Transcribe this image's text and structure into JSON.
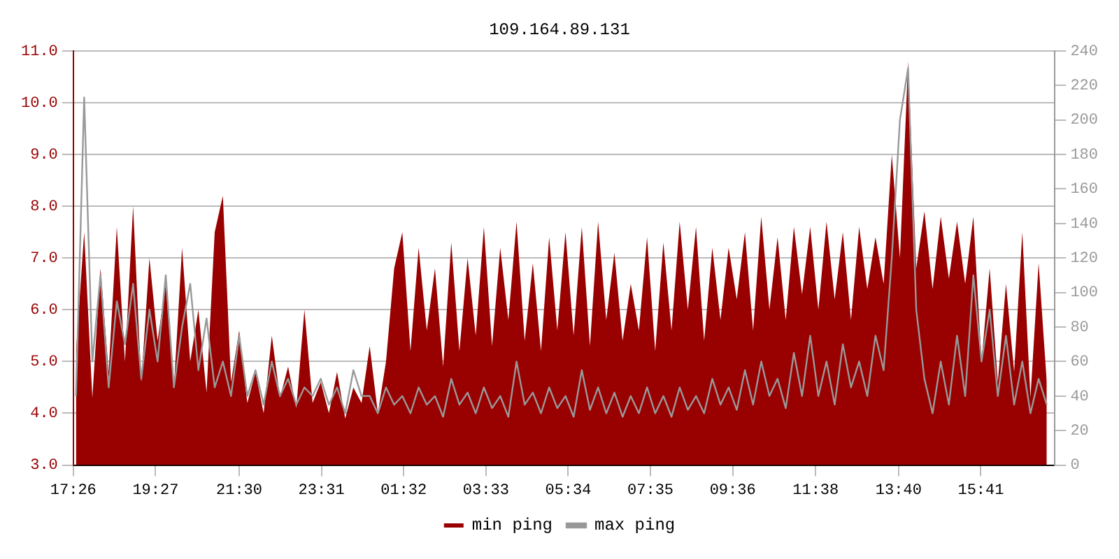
{
  "chart_data": {
    "type": "line",
    "title": "109.164.89.131",
    "x": [
      "--01-01T17:30",
      "--01-01T17:42",
      "--01-01T17:54",
      "--01-01T18:06",
      "--01-01T18:18",
      "--01-01T18:30",
      "--01-01T18:42",
      "--01-01T18:54",
      "--01-01T19:06",
      "--01-01T19:18",
      "--01-01T19:30",
      "--01-01T19:42",
      "--01-01T19:54",
      "--01-01T20:06",
      "--01-01T20:18",
      "--01-01T20:30",
      "--01-01T20:42",
      "--01-01T20:54",
      "--01-01T21:06",
      "--01-01T21:18",
      "--01-01T21:30",
      "--01-01T21:42",
      "--01-01T21:54",
      "--01-01T22:06",
      "--01-01T22:18",
      "--01-01T22:30",
      "--01-01T22:42",
      "--01-01T22:54",
      "--01-01T23:06",
      "--01-01T23:18",
      "--01-01T23:30",
      "--01-01T23:42",
      "--01-01T23:54",
      "--01-02T00:06",
      "--01-02T00:18",
      "--01-02T00:30",
      "--01-02T00:42",
      "--01-02T00:54",
      "--01-02T01:06",
      "--01-02T01:18",
      "--01-02T01:30",
      "--01-02T01:42",
      "--01-02T01:54",
      "--01-02T02:06",
      "--01-02T02:18",
      "--01-02T02:30",
      "--01-02T02:42",
      "--01-02T02:54",
      "--01-02T03:06",
      "--01-02T03:18",
      "--01-02T03:30",
      "--01-02T03:42",
      "--01-02T03:54",
      "--01-02T04:06",
      "--01-02T04:18",
      "--01-02T04:30",
      "--01-02T04:42",
      "--01-02T04:54",
      "--01-02T05:06",
      "--01-02T05:18",
      "--01-02T05:30",
      "--01-02T05:42",
      "--01-02T05:54",
      "--01-02T06:06",
      "--01-02T06:18",
      "--01-02T06:30",
      "--01-02T06:42",
      "--01-02T06:54",
      "--01-02T07:06",
      "--01-02T07:18",
      "--01-02T07:30",
      "--01-02T07:42",
      "--01-02T07:54",
      "--01-02T08:06",
      "--01-02T08:18",
      "--01-02T08:30",
      "--01-02T08:42",
      "--01-02T08:54",
      "--01-02T09:06",
      "--01-02T09:18",
      "--01-02T09:30",
      "--01-02T09:42",
      "--01-02T09:54",
      "--01-02T10:06",
      "--01-02T10:18",
      "--01-02T10:30",
      "--01-02T10:42",
      "--01-02T10:54",
      "--01-02T11:06",
      "--01-02T11:18",
      "--01-02T11:30",
      "--01-02T11:42",
      "--01-02T11:54",
      "--01-02T12:06",
      "--01-02T12:18",
      "--01-02T12:30",
      "--01-02T12:42",
      "--01-02T12:54",
      "--01-02T13:06",
      "--01-02T13:18",
      "--01-02T13:30",
      "--01-02T13:42",
      "--01-02T13:54",
      "--01-02T14:06",
      "--01-02T14:18",
      "--01-02T14:30",
      "--01-02T14:42",
      "--01-02T14:54",
      "--01-02T15:06",
      "--01-02T15:18",
      "--01-02T15:30",
      "--01-02T15:42",
      "--01-02T15:54",
      "--01-02T16:06",
      "--01-02T16:18",
      "--01-02T16:30",
      "--01-02T16:42",
      "--01-02T16:54",
      "--01-02T17:06",
      "--01-02T17:18"
    ],
    "series": [
      {
        "name": "min ping",
        "type": "area",
        "color": "#990000",
        "values": [
          5.2,
          7.5,
          4.3,
          6.8,
          4.8,
          7.6,
          5.0,
          8.0,
          4.6,
          7.0,
          5.4,
          6.5,
          4.5,
          7.2,
          5.0,
          6.0,
          4.4,
          7.5,
          8.2,
          4.6,
          5.6,
          4.2,
          4.8,
          4.0,
          5.5,
          4.3,
          4.9,
          4.1,
          6.0,
          4.2,
          4.6,
          4.0,
          4.8,
          3.9,
          4.5,
          4.2,
          5.3,
          4.0,
          5.0,
          6.8,
          7.5,
          5.2,
          7.2,
          5.6,
          6.8,
          4.9,
          7.3,
          5.2,
          7.0,
          5.5,
          7.6,
          5.3,
          7.2,
          5.8,
          7.7,
          5.4,
          6.9,
          5.2,
          7.4,
          5.6,
          7.5,
          5.5,
          7.6,
          5.3,
          7.7,
          5.8,
          7.1,
          5.4,
          6.5,
          5.6,
          7.4,
          5.2,
          7.3,
          5.6,
          7.7,
          6.0,
          7.6,
          5.4,
          7.2,
          5.8,
          7.2,
          6.2,
          7.5,
          5.6,
          7.8,
          6.0,
          7.4,
          5.8,
          7.6,
          6.3,
          7.6,
          6.0,
          7.7,
          6.2,
          7.5,
          5.8,
          7.6,
          6.4,
          7.4,
          6.5,
          9.0,
          7.0,
          10.8,
          6.8,
          7.9,
          6.4,
          7.8,
          6.6,
          7.7,
          6.5,
          7.8,
          5.0,
          6.8,
          4.6,
          6.5,
          4.8,
          7.5,
          4.3,
          6.9,
          4.6
        ]
      },
      {
        "name": "max ping",
        "type": "line",
        "axis": "y2",
        "color": "#999999",
        "values": [
          40,
          213,
          60,
          110,
          45,
          95,
          70,
          105,
          50,
          90,
          60,
          110,
          45,
          80,
          105,
          55,
          85,
          45,
          60,
          40,
          75,
          40,
          55,
          35,
          60,
          40,
          50,
          35,
          45,
          40,
          50,
          35,
          45,
          30,
          55,
          40,
          40,
          30,
          45,
          35,
          40,
          30,
          45,
          35,
          40,
          28,
          50,
          35,
          42,
          30,
          45,
          33,
          40,
          28,
          60,
          35,
          42,
          30,
          45,
          33,
          40,
          28,
          55,
          32,
          45,
          30,
          42,
          28,
          40,
          30,
          45,
          30,
          40,
          28,
          45,
          32,
          40,
          30,
          50,
          35,
          45,
          32,
          55,
          35,
          60,
          40,
          50,
          33,
          65,
          40,
          75,
          40,
          60,
          35,
          70,
          45,
          60,
          40,
          75,
          55,
          120,
          200,
          230,
          90,
          50,
          30,
          60,
          35,
          75,
          40,
          110,
          60,
          90,
          40,
          75,
          35,
          60,
          30,
          50,
          35
        ]
      }
    ],
    "xlim": [
      "--01-01T17:26",
      "--01-02T17:30"
    ],
    "xticks": [
      {
        "value": "--01-01T17:26",
        "label": "17:26"
      },
      {
        "value": "--01-01T19:27",
        "label": "19:27"
      },
      {
        "value": "--01-01T21:30",
        "label": "21:30"
      },
      {
        "value": "--01-01T23:31",
        "label": "23:31"
      },
      {
        "value": "--01-02T01:32",
        "label": "01:32"
      },
      {
        "value": "--01-02T03:33",
        "label": "03:33"
      },
      {
        "value": "--01-02T05:34",
        "label": "05:34"
      },
      {
        "value": "--01-02T07:35",
        "label": "07:35"
      },
      {
        "value": "--01-02T09:36",
        "label": "09:36"
      },
      {
        "value": "--01-02T11:38",
        "label": "11:38"
      },
      {
        "value": "--01-02T13:40",
        "label": "13:40"
      },
      {
        "value": "--01-02T15:41",
        "label": "15:41"
      }
    ],
    "ylim": [
      3,
      11
    ],
    "yticks": [
      {
        "value": 3,
        "label": "3.0"
      },
      {
        "value": 4,
        "label": "4.0"
      },
      {
        "value": 5,
        "label": "5.0"
      },
      {
        "value": 6,
        "label": "6.0"
      },
      {
        "value": 7,
        "label": "7.0"
      },
      {
        "value": 8,
        "label": "8.0"
      },
      {
        "value": 9,
        "label": "9.0"
      },
      {
        "value": 10,
        "label": "10.0"
      },
      {
        "value": 11,
        "label": "11.0"
      }
    ],
    "y2lim": [
      0,
      240
    ],
    "y2ticks": [
      0,
      20,
      40,
      60,
      80,
      100,
      120,
      140,
      160,
      180,
      200,
      220,
      240
    ],
    "grid": "y",
    "legend": "bottom"
  }
}
